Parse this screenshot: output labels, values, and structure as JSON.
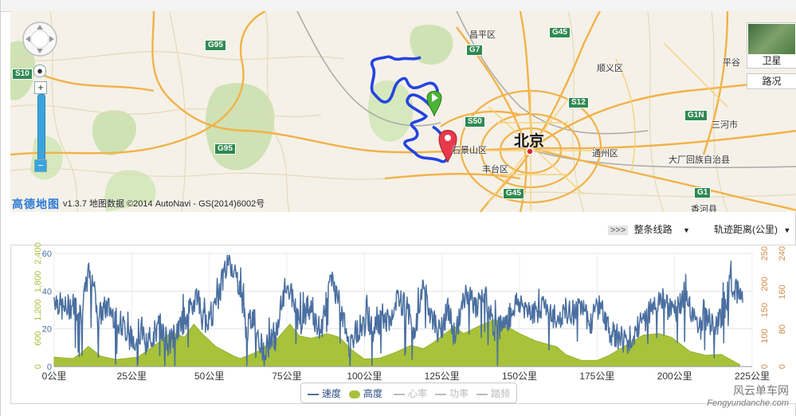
{
  "map": {
    "version_text": "v1.3.7 地图数据 ©2014 AutoNavi - GS(2014)6002号",
    "logo_text": "高德地图",
    "satellite_label": "卫星",
    "traffic_label": "路况",
    "places": [
      {
        "name": "昌平区",
        "kind": "district"
      },
      {
        "name": "顺义区",
        "kind": "district"
      },
      {
        "name": "平谷",
        "kind": "district"
      },
      {
        "name": "北京",
        "kind": "city"
      },
      {
        "name": "石景山区",
        "kind": "district"
      },
      {
        "name": "丰台区",
        "kind": "district"
      },
      {
        "name": "通州区",
        "kind": "district"
      },
      {
        "name": "三河市",
        "kind": "district"
      },
      {
        "name": "大厂回族自治县",
        "kind": "district"
      },
      {
        "name": "香河县",
        "kind": "district"
      }
    ],
    "highways": [
      "G95",
      "S10",
      "G7",
      "G45",
      "S12",
      "S50",
      "G1N",
      "G95",
      "G45",
      "G1"
    ]
  },
  "controls": {
    "arrow_label": ">>>",
    "route_select": "整条线路",
    "axis_select": "轨迹距离(公里)",
    "caret": "▼"
  },
  "legend": {
    "items": [
      {
        "label": "速度",
        "active": true,
        "color": "#4a6fa0"
      },
      {
        "label": "高度",
        "active": true,
        "color": "#a8c23a"
      },
      {
        "label": "心率",
        "active": false,
        "color": "#bbbbbb"
      },
      {
        "label": "功率",
        "active": false,
        "color": "#bbbbbb"
      },
      {
        "label": "踏频",
        "active": false,
        "color": "#bbbbbb"
      }
    ]
  },
  "watermark": {
    "line1": "风云单车网",
    "line2": "Fengyundanche.com"
  },
  "chart_data": {
    "type": "line",
    "x_ticks": [
      "0公里",
      "25公里",
      "50公里",
      "75公里",
      "100公里",
      "125公里",
      "150公里",
      "175公里",
      "200公里",
      "225公里"
    ],
    "x_range": [
      0,
      225
    ],
    "axes": {
      "speed": {
        "ticks": [
          "0",
          "20",
          "40",
          "60"
        ],
        "range": [
          0,
          60
        ],
        "color": "#4a6fa0"
      },
      "altitude": {
        "ticks": [
          "0",
          "600",
          "1,200",
          "1,800",
          "2,400"
        ],
        "range": [
          0,
          2400
        ],
        "color": "#a8c23a"
      },
      "left_offset_ticks": [
        "0",
        "100",
        "150",
        "200",
        "250"
      ],
      "right_ticks": [
        "0",
        "80",
        "160",
        "240"
      ]
    },
    "series": [
      {
        "name": "速度",
        "axis": "speed",
        "color": "#4a6fa0",
        "keyframes": [
          [
            0,
            37
          ],
          [
            3,
            30
          ],
          [
            6,
            33
          ],
          [
            9,
            28
          ],
          [
            11,
            50
          ],
          [
            13,
            44
          ],
          [
            14,
            26
          ],
          [
            17,
            32
          ],
          [
            22,
            22
          ],
          [
            25,
            14
          ],
          [
            28,
            18
          ],
          [
            30,
            12
          ],
          [
            34,
            22
          ],
          [
            37,
            12
          ],
          [
            40,
            20
          ],
          [
            44,
            30
          ],
          [
            46,
            40
          ],
          [
            48,
            24
          ],
          [
            52,
            30
          ],
          [
            55,
            52
          ],
          [
            57,
            55
          ],
          [
            60,
            42
          ],
          [
            62,
            18
          ],
          [
            64,
            28
          ],
          [
            67,
            10
          ],
          [
            71,
            12
          ],
          [
            73,
            30
          ],
          [
            75,
            45
          ],
          [
            77,
            35
          ],
          [
            79,
            22
          ],
          [
            82,
            32
          ],
          [
            86,
            18
          ],
          [
            88,
            40
          ],
          [
            90,
            45
          ],
          [
            93,
            26
          ],
          [
            95,
            12
          ],
          [
            98,
            20
          ],
          [
            101,
            24
          ],
          [
            103,
            18
          ],
          [
            106,
            28
          ],
          [
            108,
            22
          ],
          [
            111,
            36
          ],
          [
            114,
            30
          ],
          [
            116,
            14
          ],
          [
            119,
            42
          ],
          [
            121,
            30
          ],
          [
            124,
            18
          ],
          [
            127,
            30
          ],
          [
            129,
            16
          ],
          [
            133,
            40
          ],
          [
            136,
            30
          ],
          [
            138,
            42
          ],
          [
            142,
            20
          ],
          [
            146,
            24
          ],
          [
            149,
            34
          ],
          [
            152,
            32
          ],
          [
            155,
            28
          ],
          [
            158,
            34
          ],
          [
            162,
            25
          ],
          [
            166,
            28
          ],
          [
            170,
            30
          ],
          [
            173,
            24
          ],
          [
            176,
            34
          ],
          [
            179,
            18
          ],
          [
            182,
            15
          ],
          [
            185,
            14
          ],
          [
            188,
            20
          ],
          [
            191,
            26
          ],
          [
            194,
            36
          ],
          [
            197,
            32
          ],
          [
            200,
            28
          ],
          [
            203,
            38
          ],
          [
            206,
            26
          ],
          [
            208,
            20
          ],
          [
            210,
            26
          ],
          [
            213,
            20
          ],
          [
            216,
            30
          ],
          [
            218,
            45
          ],
          [
            221,
            38
          ],
          [
            222,
            36
          ]
        ]
      },
      {
        "name": "高度",
        "axis": "altitude",
        "color": "#a8c23a",
        "keyframes": [
          [
            0,
            200
          ],
          [
            6,
            170
          ],
          [
            9,
            300
          ],
          [
            11,
            430
          ],
          [
            15,
            220
          ],
          [
            20,
            150
          ],
          [
            27,
            200
          ],
          [
            33,
            480
          ],
          [
            38,
            730
          ],
          [
            42,
            620
          ],
          [
            45,
            900
          ],
          [
            48,
            680
          ],
          [
            52,
            430
          ],
          [
            58,
            220
          ],
          [
            60,
            170
          ],
          [
            65,
            300
          ],
          [
            72,
            600
          ],
          [
            76,
            900
          ],
          [
            79,
            650
          ],
          [
            83,
            600
          ],
          [
            88,
            700
          ],
          [
            92,
            620
          ],
          [
            96,
            350
          ],
          [
            100,
            160
          ],
          [
            105,
            180
          ],
          [
            110,
            300
          ],
          [
            115,
            450
          ],
          [
            119,
            380
          ],
          [
            122,
            500
          ],
          [
            126,
            700
          ],
          [
            129,
            850
          ],
          [
            132,
            700
          ],
          [
            137,
            860
          ],
          [
            142,
            1000
          ],
          [
            144,
            920
          ],
          [
            150,
            700
          ],
          [
            155,
            550
          ],
          [
            162,
            420
          ],
          [
            165,
            250
          ],
          [
            170,
            130
          ],
          [
            175,
            130
          ],
          [
            179,
            240
          ],
          [
            184,
            440
          ],
          [
            190,
            670
          ],
          [
            195,
            700
          ],
          [
            199,
            620
          ],
          [
            205,
            320
          ],
          [
            210,
            240
          ],
          [
            215,
            260
          ],
          [
            218,
            150
          ],
          [
            221,
            40
          ]
        ]
      }
    ]
  }
}
